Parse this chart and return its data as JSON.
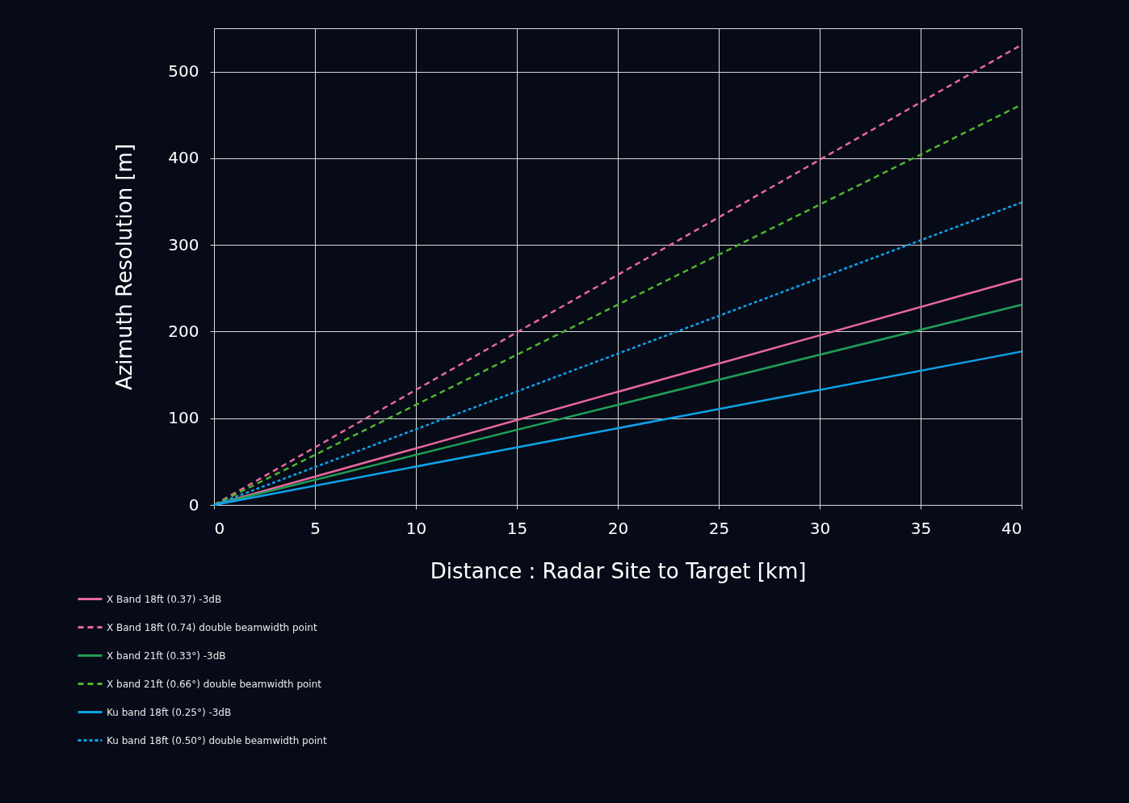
{
  "chart_data": {
    "type": "line",
    "xlabel": "Distance : Radar Site to Target [km]",
    "ylabel": "Azimuth Resolution [m]",
    "x": [
      0,
      40
    ],
    "series": [
      {
        "name": "X Band 18ft (0.37) -3dB",
        "color": "#e8689c",
        "values": [
          0,
          261
        ],
        "line_style": "solid"
      },
      {
        "name": "X Band 18ft (0.74) double beamwidth point",
        "color": "#e8689c",
        "values": [
          0,
          531
        ],
        "line_style": "dashed"
      },
      {
        "name": "X band 21ft (0.33°) -3dB",
        "color": "#1f9e55",
        "values": [
          0,
          231
        ],
        "line_style": "solid"
      },
      {
        "name": "X band 21ft (0.66°) double beamwidth point",
        "color": "#4fb52e",
        "values": [
          0,
          462
        ],
        "line_style": "dashed"
      },
      {
        "name": "Ku band 18ft (0.25°) -3dB",
        "color": "#0ea2ea",
        "values": [
          0,
          177
        ],
        "line_style": "solid"
      },
      {
        "name": "Ku band 18ft (0.50°) double beamwidth point",
        "color": "#0ea2ea",
        "values": [
          0,
          349
        ],
        "line_style": "dotted"
      }
    ],
    "xlim": [
      0,
      40
    ],
    "xticks": [
      0,
      5,
      10,
      15,
      20,
      25,
      30,
      35,
      40
    ],
    "ylim": [
      0,
      550
    ],
    "yticks": [
      0,
      100,
      200,
      300,
      400,
      500
    ],
    "grid": true,
    "legend": "bottom left"
  }
}
